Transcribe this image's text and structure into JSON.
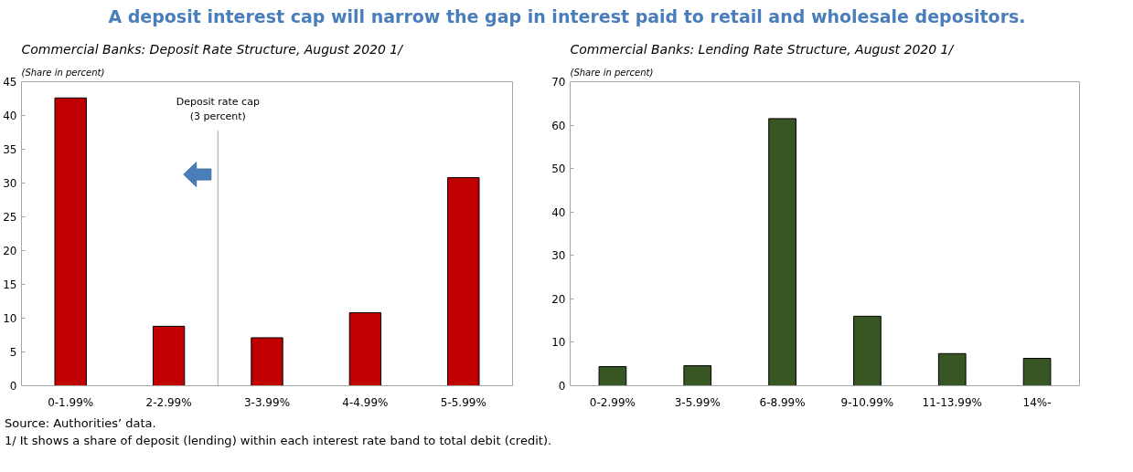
{
  "chart_data": [
    {
      "type": "bar",
      "title": "Commercial Banks: Deposit Rate Structure, August 2020 1/",
      "subtitle": "(Share in percent)",
      "categories": [
        "0-1.99%",
        "2-2.99%",
        "3-3.99%",
        "4-4.99%",
        "5-5.99%"
      ],
      "values": [
        42.6,
        8.8,
        7.1,
        10.8,
        30.8
      ],
      "color": "#c00000",
      "ylim": [
        0,
        45
      ],
      "yticks": [
        0,
        5,
        10,
        15,
        20,
        25,
        30,
        35,
        40,
        45
      ],
      "grid": false,
      "annotations": [
        "Deposit rate cap\n(3 percent)"
      ]
    },
    {
      "type": "bar",
      "title": "Commercial Banks: Lending Rate Structure, August 2020 1/",
      "subtitle": "(Share in percent)",
      "categories": [
        "0-2.99%",
        "3-5.99%",
        "6-8.99%",
        "9-10.99%",
        "11-13.99%",
        "14%-"
      ],
      "values": [
        4.4,
        4.6,
        61.5,
        16.0,
        7.4,
        6.3
      ],
      "color": "#375623",
      "ylim": [
        0,
        70
      ],
      "yticks": [
        0,
        10,
        20,
        30,
        40,
        50,
        60,
        70
      ],
      "grid": false
    },
    {
      "type": "other",
      "title": "A deposit interest cap will narrow the gap in interest paid to retail and wholesale depositors.",
      "annotations": [
        "Source: Authorities’ data.",
        "1/ It shows a share of deposit (lending) within each interest rate band to total debit (credit)."
      ]
    }
  ]
}
